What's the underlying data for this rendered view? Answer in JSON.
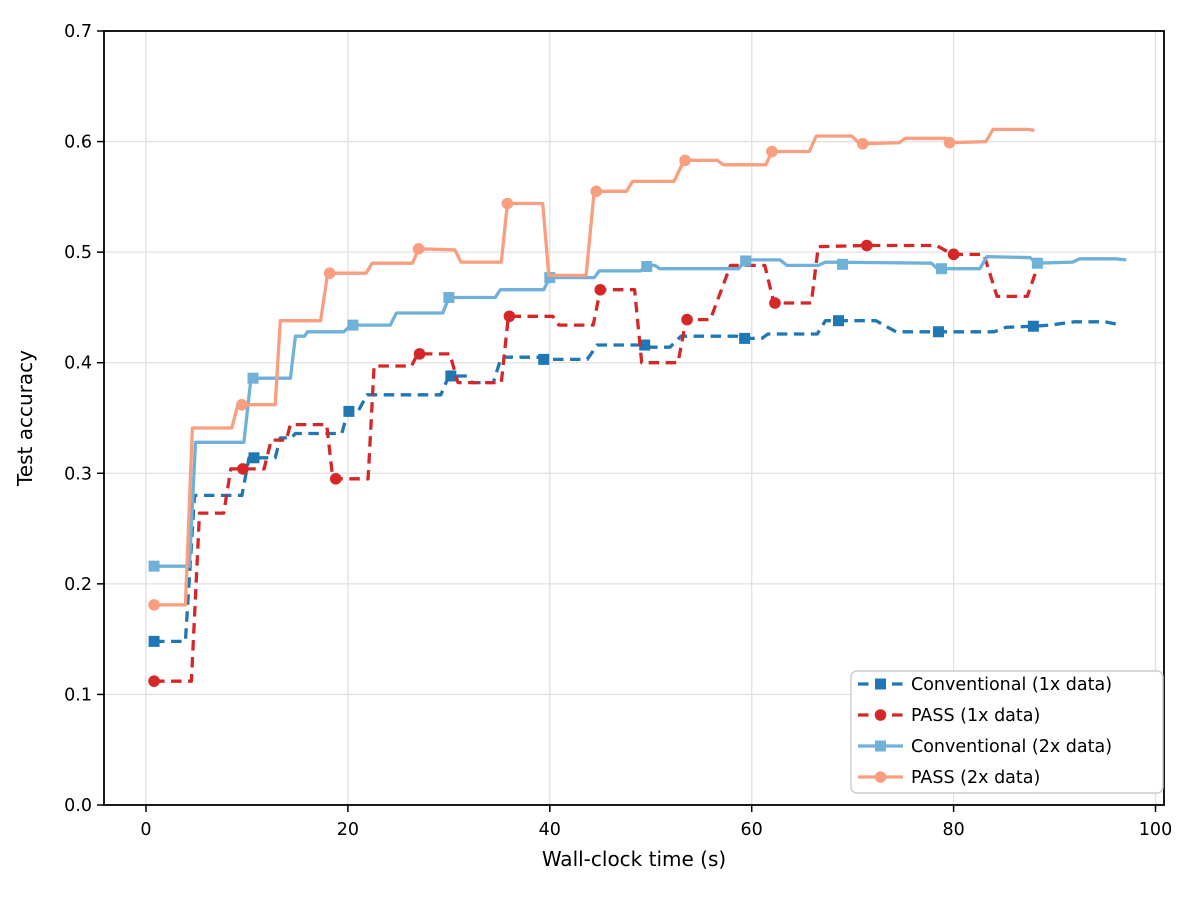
{
  "figure": {
    "background": "#ffffff"
  },
  "chart_data": {
    "type": "line",
    "title": "",
    "xlabel": "Wall-clock time (s)",
    "ylabel": "Test accuracy",
    "xlim": [
      -4.2,
      100.8
    ],
    "ylim": [
      0.0,
      0.7
    ],
    "x_ticks": [
      0,
      20,
      40,
      60,
      80,
      100
    ],
    "y_tick_values": [
      0.0,
      0.1,
      0.2,
      0.3,
      0.4,
      0.5,
      0.6,
      0.7
    ],
    "y_tick_labels": [
      "0.0",
      "0.1",
      "0.2",
      "0.3",
      "0.4",
      "0.5",
      "0.6",
      "0.7"
    ],
    "grid": true,
    "grid_color": "#e0e0e0",
    "legend_position": "lower right",
    "series": [
      {
        "name": "Conventional (1x data)",
        "color": "#1f77b4",
        "line_style": "dashed",
        "marker": "square",
        "points": [
          [
            0.8,
            0.148
          ],
          [
            3.9,
            0.148
          ],
          [
            4.8,
            0.28
          ],
          [
            9.5,
            0.28
          ],
          [
            10.2,
            0.314
          ],
          [
            12.8,
            0.314
          ],
          [
            13.3,
            0.332
          ],
          [
            14.4,
            0.332
          ],
          [
            14.8,
            0.336
          ],
          [
            19.4,
            0.336
          ],
          [
            20.0,
            0.356
          ],
          [
            21.0,
            0.356
          ],
          [
            21.9,
            0.371
          ],
          [
            29.2,
            0.371
          ],
          [
            30.0,
            0.388
          ],
          [
            31.8,
            0.388
          ],
          [
            32.3,
            0.382
          ],
          [
            34.4,
            0.382
          ],
          [
            35.2,
            0.405
          ],
          [
            39.0,
            0.405
          ],
          [
            39.5,
            0.403
          ],
          [
            43.7,
            0.403
          ],
          [
            44.7,
            0.416
          ],
          [
            49.4,
            0.416
          ],
          [
            50.0,
            0.414
          ],
          [
            51.9,
            0.414
          ],
          [
            53.0,
            0.424
          ],
          [
            58.5,
            0.424
          ],
          [
            59.3,
            0.422
          ],
          [
            61.0,
            0.422
          ],
          [
            61.6,
            0.426
          ],
          [
            66.5,
            0.426
          ],
          [
            67.3,
            0.438
          ],
          [
            72.3,
            0.438
          ],
          [
            74.3,
            0.428
          ],
          [
            84.0,
            0.428
          ],
          [
            85.2,
            0.432
          ],
          [
            88.0,
            0.433
          ],
          [
            89.5,
            0.434
          ],
          [
            92.0,
            0.437
          ],
          [
            95.0,
            0.437
          ],
          [
            96.6,
            0.434
          ]
        ],
        "marker_points": [
          [
            0.8,
            0.148
          ],
          [
            10.7,
            0.314
          ],
          [
            20.1,
            0.356
          ],
          [
            30.2,
            0.388
          ],
          [
            39.4,
            0.403
          ],
          [
            49.4,
            0.416
          ],
          [
            59.3,
            0.422
          ],
          [
            68.6,
            0.438
          ],
          [
            78.5,
            0.428
          ],
          [
            87.9,
            0.433
          ]
        ]
      },
      {
        "name": "PASS (1x data)",
        "color": "#d62728",
        "line_style": "dashed",
        "marker": "circle",
        "points": [
          [
            0.8,
            0.112
          ],
          [
            4.5,
            0.112
          ],
          [
            5.3,
            0.264
          ],
          [
            7.7,
            0.264
          ],
          [
            8.4,
            0.304
          ],
          [
            11.7,
            0.304
          ],
          [
            12.4,
            0.33
          ],
          [
            13.9,
            0.33
          ],
          [
            14.3,
            0.344
          ],
          [
            17.9,
            0.344
          ],
          [
            18.5,
            0.295
          ],
          [
            22.0,
            0.295
          ],
          [
            22.6,
            0.397
          ],
          [
            26.3,
            0.397
          ],
          [
            26.9,
            0.408
          ],
          [
            30.1,
            0.408
          ],
          [
            30.9,
            0.382
          ],
          [
            35.2,
            0.382
          ],
          [
            35.9,
            0.442
          ],
          [
            40.3,
            0.442
          ],
          [
            40.9,
            0.434
          ],
          [
            44.3,
            0.434
          ],
          [
            45.0,
            0.466
          ],
          [
            48.4,
            0.466
          ],
          [
            49.1,
            0.4
          ],
          [
            52.7,
            0.4
          ],
          [
            53.5,
            0.439
          ],
          [
            55.9,
            0.439
          ],
          [
            57.9,
            0.488
          ],
          [
            61.3,
            0.488
          ],
          [
            62.2,
            0.454
          ],
          [
            65.9,
            0.454
          ],
          [
            66.6,
            0.505
          ],
          [
            71.4,
            0.506
          ],
          [
            78.3,
            0.506
          ],
          [
            79.9,
            0.498
          ],
          [
            83.0,
            0.498
          ],
          [
            84.3,
            0.46
          ],
          [
            87.3,
            0.46
          ],
          [
            88.4,
            0.489
          ]
        ],
        "marker_points": [
          [
            0.8,
            0.112
          ],
          [
            9.6,
            0.304
          ],
          [
            18.8,
            0.295
          ],
          [
            27.1,
            0.408
          ],
          [
            36.0,
            0.442
          ],
          [
            45.0,
            0.466
          ],
          [
            53.6,
            0.439
          ],
          [
            62.3,
            0.454
          ],
          [
            71.4,
            0.506
          ],
          [
            80.0,
            0.498
          ]
        ]
      },
      {
        "name": "Conventional (2x data)",
        "color": "#6fb1d8",
        "line_style": "solid",
        "marker": "square",
        "points": [
          [
            0.8,
            0.216
          ],
          [
            4.3,
            0.216
          ],
          [
            4.9,
            0.328
          ],
          [
            9.7,
            0.328
          ],
          [
            10.4,
            0.386
          ],
          [
            14.3,
            0.386
          ],
          [
            14.8,
            0.424
          ],
          [
            15.7,
            0.424
          ],
          [
            16.0,
            0.428
          ],
          [
            19.6,
            0.428
          ],
          [
            20.3,
            0.434
          ],
          [
            24.2,
            0.434
          ],
          [
            24.8,
            0.445
          ],
          [
            29.4,
            0.445
          ],
          [
            30.0,
            0.459
          ],
          [
            34.6,
            0.459
          ],
          [
            35.1,
            0.466
          ],
          [
            39.4,
            0.466
          ],
          [
            40.0,
            0.477
          ],
          [
            44.4,
            0.477
          ],
          [
            44.9,
            0.483
          ],
          [
            49.0,
            0.483
          ],
          [
            49.6,
            0.488
          ],
          [
            50.4,
            0.488
          ],
          [
            50.9,
            0.485
          ],
          [
            58.7,
            0.485
          ],
          [
            59.4,
            0.493
          ],
          [
            62.8,
            0.493
          ],
          [
            63.5,
            0.488
          ],
          [
            66.6,
            0.488
          ],
          [
            67.3,
            0.491
          ],
          [
            77.8,
            0.49
          ],
          [
            78.4,
            0.485
          ],
          [
            82.6,
            0.485
          ],
          [
            83.3,
            0.496
          ],
          [
            87.6,
            0.495
          ],
          [
            88.2,
            0.49
          ],
          [
            91.8,
            0.491
          ],
          [
            92.5,
            0.494
          ],
          [
            96.0,
            0.494
          ],
          [
            97.1,
            0.493
          ]
        ],
        "marker_points": [
          [
            0.8,
            0.216
          ],
          [
            10.6,
            0.386
          ],
          [
            20.5,
            0.434
          ],
          [
            30.0,
            0.459
          ],
          [
            40.0,
            0.477
          ],
          [
            49.6,
            0.487
          ],
          [
            59.4,
            0.492
          ],
          [
            69.0,
            0.489
          ],
          [
            78.8,
            0.485
          ],
          [
            88.3,
            0.49
          ]
        ]
      },
      {
        "name": "PASS (2x data)",
        "color": "#fa9e80",
        "line_style": "solid",
        "marker": "circle",
        "points": [
          [
            0.8,
            0.181
          ],
          [
            3.9,
            0.181
          ],
          [
            4.6,
            0.341
          ],
          [
            8.5,
            0.341
          ],
          [
            9.1,
            0.362
          ],
          [
            12.8,
            0.362
          ],
          [
            13.3,
            0.438
          ],
          [
            17.3,
            0.438
          ],
          [
            18.0,
            0.481
          ],
          [
            21.8,
            0.481
          ],
          [
            22.4,
            0.49
          ],
          [
            26.4,
            0.49
          ],
          [
            27.0,
            0.503
          ],
          [
            30.6,
            0.502
          ],
          [
            31.2,
            0.491
          ],
          [
            35.2,
            0.491
          ],
          [
            35.8,
            0.544
          ],
          [
            39.3,
            0.544
          ],
          [
            39.9,
            0.479
          ],
          [
            43.6,
            0.479
          ],
          [
            44.4,
            0.555
          ],
          [
            47.6,
            0.555
          ],
          [
            48.2,
            0.564
          ],
          [
            52.3,
            0.564
          ],
          [
            53.3,
            0.583
          ],
          [
            56.6,
            0.583
          ],
          [
            57.2,
            0.579
          ],
          [
            61.4,
            0.579
          ],
          [
            62.0,
            0.591
          ],
          [
            65.7,
            0.591
          ],
          [
            66.4,
            0.605
          ],
          [
            69.9,
            0.605
          ],
          [
            70.7,
            0.598
          ],
          [
            74.6,
            0.599
          ],
          [
            75.2,
            0.603
          ],
          [
            79.2,
            0.603
          ],
          [
            79.6,
            0.599
          ],
          [
            83.2,
            0.6
          ],
          [
            83.9,
            0.611
          ],
          [
            87.4,
            0.611
          ],
          [
            88.0,
            0.61
          ]
        ],
        "marker_points": [
          [
            0.8,
            0.181
          ],
          [
            9.5,
            0.362
          ],
          [
            18.2,
            0.481
          ],
          [
            27.0,
            0.503
          ],
          [
            35.8,
            0.544
          ],
          [
            44.6,
            0.555
          ],
          [
            53.4,
            0.583
          ],
          [
            62.0,
            0.591
          ],
          [
            71.0,
            0.598
          ],
          [
            79.6,
            0.599
          ]
        ]
      }
    ]
  }
}
